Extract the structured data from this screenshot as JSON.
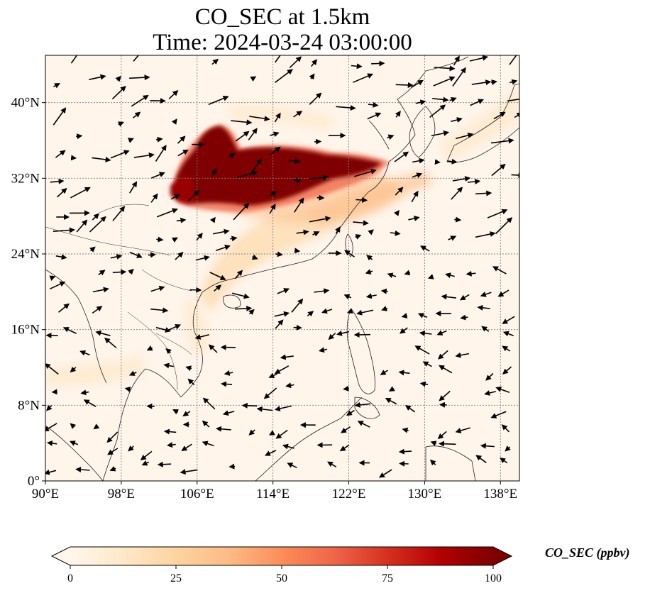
{
  "title": {
    "line1": "CO_SEC at 1.5km",
    "line2": "Time: 2024-03-24 03:00:00"
  },
  "map": {
    "extent": {
      "lon": [
        90,
        140
      ],
      "lat": [
        0,
        45
      ]
    },
    "lon_ticks": [
      {
        "value": 90,
        "label": "90°E"
      },
      {
        "value": 98,
        "label": "98°E"
      },
      {
        "value": 106,
        "label": "106°E"
      },
      {
        "value": 114,
        "label": "114°E"
      },
      {
        "value": 122,
        "label": "122°E"
      },
      {
        "value": 130,
        "label": "130°E"
      },
      {
        "value": 138,
        "label": "138°E"
      }
    ],
    "lat_ticks": [
      {
        "value": 0,
        "label": "0°"
      },
      {
        "value": 8,
        "label": "8°N"
      },
      {
        "value": 16,
        "label": "16°N"
      },
      {
        "value": 24,
        "label": "24°N"
      },
      {
        "value": 32,
        "label": "32°N"
      },
      {
        "value": 40,
        "label": "40°N"
      }
    ],
    "gridlines": true,
    "background_color": "#fff5eb",
    "plume_color": "#7f0000",
    "coastline_color": "#222222",
    "wind_arrows": true
  },
  "colorbar": {
    "label": "CO_SEC (ppbv)",
    "min": 0,
    "max": 100,
    "extend": "both",
    "ticks": [
      "0",
      "25",
      "50",
      "75",
      "100"
    ],
    "colormap": "OrRd",
    "stops": [
      "#fff7ec",
      "#fee8c8",
      "#fdd49e",
      "#fdbb84",
      "#fc8d59",
      "#ef6548",
      "#d7301f",
      "#b30000",
      "#7f0000"
    ]
  }
}
